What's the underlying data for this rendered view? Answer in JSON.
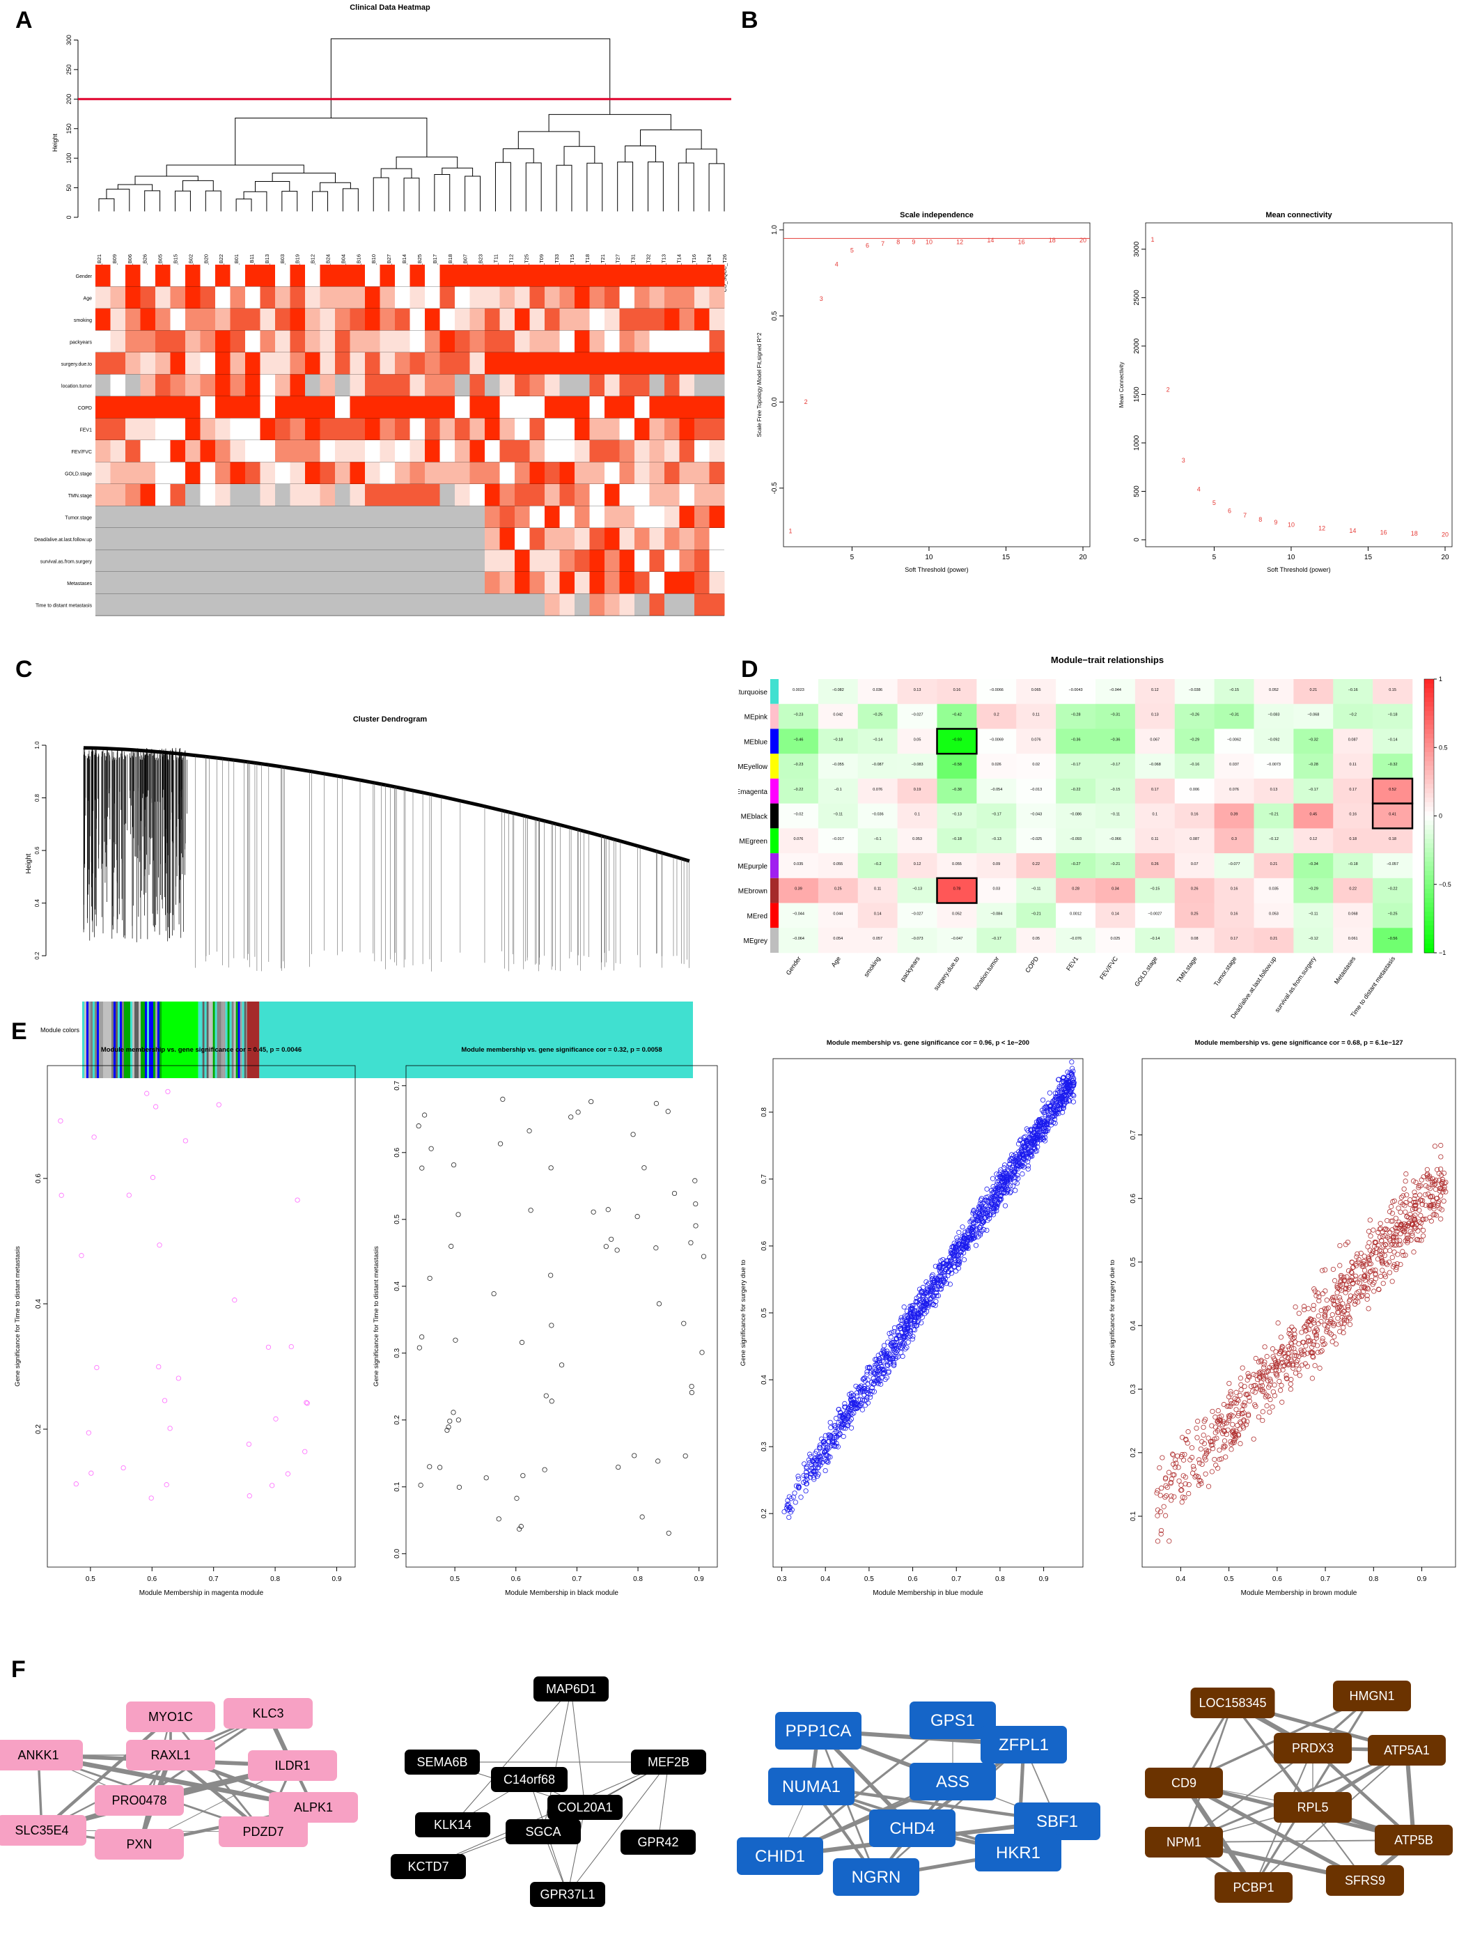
{
  "panels": {
    "A": "A",
    "B": "B",
    "C": "C",
    "D": "D",
    "E": "E",
    "F": "F"
  },
  "panelA": {
    "title": "Clinical Data Heatmap",
    "ylabel": "Height",
    "yticks": [
      "0",
      "50",
      "100",
      "150",
      "200",
      "250",
      "300"
    ],
    "cut_height": 200,
    "samples": [
      "CO_NOR_B21",
      "NOR_B09",
      "NOR_B06",
      "NOR_B26",
      "CO_NOR_B05",
      "CO_NOR_B15",
      "NOR_B02",
      "CO_NOR_B20",
      "CO_NOR_B22",
      "NOR_B01",
      "NOR_B11",
      "NOR_B13",
      "CO_NOR_B03",
      "CO_NOR_B19",
      "CO_NOR_B12",
      "CO_NOR_B24",
      "CO_NOR_B04",
      "CO_NOR_B16",
      "NOR_B10",
      "CO_NOR_B27",
      "NOR_B14",
      "CO_NOR_B25",
      "CO_NOR_B17",
      "CO_NOR_B18",
      "NOR_B07",
      "CO_NOR_B23",
      "CO_SQCC_T11",
      "CO_SQCC_T12",
      "CO_SQCC_T25",
      "CO_SQCC_T09",
      "CO_SQCC_T33",
      "CO_SQCC_T15",
      "CO_SQCC_T18",
      "CO_SQCC_T21",
      "CO_SQCC_T27",
      "CO_SQCC_T31",
      "CO_SQCC_T32",
      "CO_SQCC_T13",
      "CO_SQCC_T14",
      "CO_SQCC_T16",
      "CO_SQCC_T24",
      "CO_SQCC_T26"
    ],
    "traits": [
      "Gender",
      "Age",
      "smoking",
      "packyears",
      "surgery.due.to",
      "location.tumor",
      "COPD",
      "FEV1",
      "FEV/FVC",
      "GOLD.stage",
      "TMN.stage",
      "Tumor.stage",
      "Dead/alive.at.last.follow.up",
      "survival.as.from.surgery",
      "Metastases",
      "Time to distant metastasis"
    ]
  },
  "panelB": {
    "left": {
      "title": "Scale independence",
      "xlabel": "Soft Threshold (power)",
      "ylabel": "Scale Free Topology Model Fit,signed R^2",
      "yticks": [
        "-0.5",
        "0.0",
        "0.5",
        "1.0"
      ],
      "xticks": [
        "5",
        "10",
        "15",
        "20"
      ]
    },
    "right": {
      "title": "Mean connectivity",
      "xlabel": "Soft Threshold (power)",
      "ylabel": "Mean Connectivity",
      "yticks": [
        "0",
        "500",
        "1000",
        "1500",
        "2000",
        "2500",
        "3000"
      ],
      "xticks": [
        "5",
        "10",
        "15",
        "20"
      ]
    }
  },
  "panelC": {
    "title": "Cluster Dendrogram",
    "ylabel": "Height",
    "yticks": [
      "0.2",
      "0.4",
      "0.6",
      "0.8",
      "1.0"
    ],
    "module_colors_label": "Module colors"
  },
  "panelD": {
    "title": "Module−trait relationships",
    "legend_ticks": [
      "1",
      "0.5",
      "0",
      "−0.5",
      "−1"
    ],
    "highlighted_cells": [
      {
        "module": "MEblue",
        "trait": "surgery.due.to"
      },
      {
        "module": "MEbrown",
        "trait": "surgery.due.to"
      },
      {
        "module": "MEmagenta",
        "trait": "Time to distant metastasis"
      },
      {
        "module": "MEblack",
        "trait": "Time to distant metastasis"
      }
    ]
  },
  "panelE": {
    "plots": [
      {
        "title": "Module membership vs. gene significance cor = 0.45, p = 0.0046",
        "xlabel": "Module Membership in magenta module",
        "ylabel": "Gene significance for Time to distant metastasis",
        "color": "#ff66ff",
        "xticks": [
          "0.5",
          "0.6",
          "0.7",
          "0.8",
          "0.9"
        ],
        "yticks": [
          "0.2",
          "0.4",
          "0.6"
        ]
      },
      {
        "title": "Module membership vs. gene significance cor = 0.32, p = 0.0058",
        "xlabel": "Module Membership in black module",
        "ylabel": "Gene significance for Time to distant metastasis",
        "color": "#222222",
        "xticks": [
          "0.5",
          "0.6",
          "0.7",
          "0.8",
          "0.9"
        ],
        "yticks": [
          "0.0",
          "0.1",
          "0.2",
          "0.3",
          "0.4",
          "0.5",
          "0.6",
          "0.7"
        ]
      },
      {
        "title": "Module membership vs. gene significance cor = 0.96, p < 1e−200",
        "xlabel": "Module Membership in blue module",
        "ylabel": "Gene significance for surgery due to",
        "color": "#1a1aee",
        "xticks": [
          "0.3",
          "0.4",
          "0.5",
          "0.6",
          "0.7",
          "0.8",
          "0.9"
        ],
        "yticks": [
          "0.2",
          "0.3",
          "0.4",
          "0.5",
          "0.6",
          "0.7",
          "0.8"
        ]
      },
      {
        "title": "Module membership vs. gene significance cor = 0.68, p = 6.1e−127",
        "xlabel": "Module Membership in brown module",
        "ylabel": "Gene significance for surgery due to",
        "color": "#b03030",
        "xticks": [
          "0.4",
          "0.5",
          "0.6",
          "0.7",
          "0.8",
          "0.9"
        ],
        "yticks": [
          "0.1",
          "0.2",
          "0.3",
          "0.4",
          "0.5",
          "0.6",
          "0.7"
        ]
      }
    ]
  },
  "panelF": {
    "networks": [
      {
        "color": "#f7a1c4",
        "textcolor": "#000000",
        "nodes": [
          "MYO1C",
          "KLC3",
          "ANKK1",
          "RAXL1",
          "ILDR1",
          "PRO0478",
          "ALPK1",
          "SLC35E4",
          "PXN",
          "PDZD7"
        ]
      },
      {
        "color": "#000000",
        "textcolor": "#ffffff",
        "nodes": [
          "MAP6D1",
          "SEMA6B",
          "C14orf68",
          "MEF2B",
          "COL20A1",
          "KLK14",
          "SGCA",
          "GPR42",
          "KCTD7",
          "GPR37L1"
        ]
      },
      {
        "color": "#1565c8",
        "textcolor": "#ffffff",
        "nodes": [
          "GPS1",
          "PPP1CA",
          "ZFPL1",
          "NUMA1",
          "ASS",
          "SBF1",
          "CHD4",
          "CHID1",
          "HKR1",
          "NGRN"
        ]
      },
      {
        "color": "#6b3300",
        "textcolor": "#ffffff",
        "nodes": [
          "LOC158345",
          "HMGN1",
          "PRDX3",
          "ATP5A1",
          "CD9",
          "RPL5",
          "NPM1",
          "ATP5B",
          "PCBP1",
          "SFRS9"
        ]
      }
    ]
  },
  "chart_data": [
    {
      "type": "line",
      "title": "Scale independence",
      "xlabel": "Soft Threshold (power)",
      "ylabel": "Scale Free Topology Model Fit,signed R^2",
      "x": [
        1,
        2,
        3,
        4,
        5,
        6,
        7,
        8,
        9,
        10,
        12,
        14,
        16,
        18,
        20
      ],
      "series": [
        {
          "values": [
            -0.75,
            0.0,
            0.6,
            0.8,
            0.88,
            0.91,
            0.92,
            0.93,
            0.93,
            0.93,
            0.93,
            0.94,
            0.93,
            0.94,
            0.94
          ]
        }
      ],
      "hline": 0.95,
      "xlim": [
        1,
        20
      ],
      "ylim": [
        -0.8,
        1.0
      ]
    },
    {
      "type": "line",
      "title": "Mean connectivity",
      "xlabel": "Soft Threshold (power)",
      "ylabel": "Mean Connectivity",
      "x": [
        1,
        2,
        3,
        4,
        5,
        6,
        7,
        8,
        9,
        10,
        12,
        14,
        16,
        18,
        20
      ],
      "series": [
        {
          "values": [
            3100,
            1550,
            820,
            520,
            380,
            300,
            250,
            210,
            180,
            155,
            120,
            95,
            75,
            65,
            55
          ]
        }
      ],
      "xlim": [
        1,
        20
      ],
      "ylim": [
        0,
        3200
      ]
    },
    {
      "type": "heatmap",
      "title": "Module−trait relationships",
      "modules": [
        "MEturquoise",
        "MEpink",
        "MEblue",
        "MEyellow",
        "MEmagenta",
        "MEblack",
        "MEgreen",
        "MEpurple",
        "MEbrown",
        "MEred",
        "MEgrey"
      ],
      "module_colors": [
        "#40e0d0",
        "#ffc0cb",
        "#0000ff",
        "#ffff00",
        "#ff00ff",
        "#000000",
        "#00ff00",
        "#a020f0",
        "#a52a2a",
        "#ff0000",
        "#bebebe"
      ],
      "traits": [
        "Gender",
        "Age",
        "smoking",
        "packyears",
        "surgery.due.to",
        "location.tumor",
        "COPD",
        "FEV1",
        "FEV/FVC",
        "GOLD.stage",
        "TMN.stage",
        "Tumor.stage",
        "Dead/alive.at.last.follow.up",
        "survival.as.from.surgery",
        "Metastases",
        "Time to distant metastasis"
      ],
      "values": [
        [
          0.0023,
          -0.082,
          0.036,
          0.13,
          0.16,
          -0.0066,
          0.065,
          -0.0043,
          -0.044,
          0.12,
          -0.038,
          -0.15,
          0.052,
          0.21,
          -0.16,
          0.15
        ],
        [
          -0.23,
          0.042,
          -0.25,
          -0.027,
          -0.42,
          0.2,
          0.11,
          -0.28,
          -0.31,
          0.13,
          -0.26,
          -0.31,
          -0.083,
          -0.068,
          -0.2,
          -0.18
        ],
        [
          -0.46,
          -0.18,
          -0.14,
          0.05,
          -0.93,
          -0.0069,
          0.076,
          -0.36,
          -0.36,
          0.067,
          -0.29,
          -0.0062,
          -0.092,
          -0.32,
          0.087,
          -0.14
        ],
        [
          -0.23,
          -0.055,
          -0.087,
          -0.083,
          -0.58,
          0.026,
          0.02,
          -0.17,
          -0.17,
          -0.068,
          -0.16,
          0.037,
          -0.0073,
          -0.28,
          0.11,
          -0.32
        ],
        [
          -0.22,
          -0.1,
          0.076,
          0.19,
          -0.38,
          -0.054,
          -0.013,
          -0.22,
          -0.15,
          0.17,
          0.006,
          0.076,
          0.13,
          -0.17,
          0.17,
          0.52
        ],
        [
          -0.02,
          -0.11,
          -0.036,
          0.1,
          -0.13,
          -0.17,
          -0.043,
          -0.086,
          -0.11,
          0.1,
          0.16,
          0.39,
          -0.21,
          0.45,
          0.16,
          0.41
        ],
        [
          0.076,
          -0.017,
          -0.1,
          0.053,
          -0.18,
          -0.13,
          -0.025,
          -0.093,
          -0.066,
          0.11,
          0.087,
          0.3,
          -0.12,
          0.12,
          0.18,
          0.18
        ],
        [
          0.035,
          0.055,
          -0.2,
          0.12,
          0.055,
          0.09,
          0.22,
          -0.27,
          -0.21,
          0.26,
          0.07,
          -0.077,
          0.21,
          -0.34,
          -0.18,
          -0.057
        ],
        [
          0.39,
          0.25,
          0.11,
          -0.13,
          0.78,
          0.03,
          -0.11,
          0.28,
          0.34,
          -0.15,
          0.26,
          0.16,
          0.035,
          -0.29,
          0.22,
          -0.22
        ],
        [
          -0.044,
          0.044,
          0.14,
          -0.027,
          0.052,
          -0.084,
          -0.21,
          0.0012,
          0.14,
          -0.0027,
          0.25,
          0.16,
          0.053,
          -0.11,
          0.068,
          -0.25
        ],
        [
          -0.064,
          0.054,
          0.057,
          -0.073,
          -0.047,
          -0.17,
          0.05,
          -0.076,
          0.025,
          -0.14,
          0.08,
          0.17,
          0.21,
          -0.12,
          0.061,
          -0.56
        ]
      ],
      "scale": [
        -1,
        1
      ]
    }
  ]
}
